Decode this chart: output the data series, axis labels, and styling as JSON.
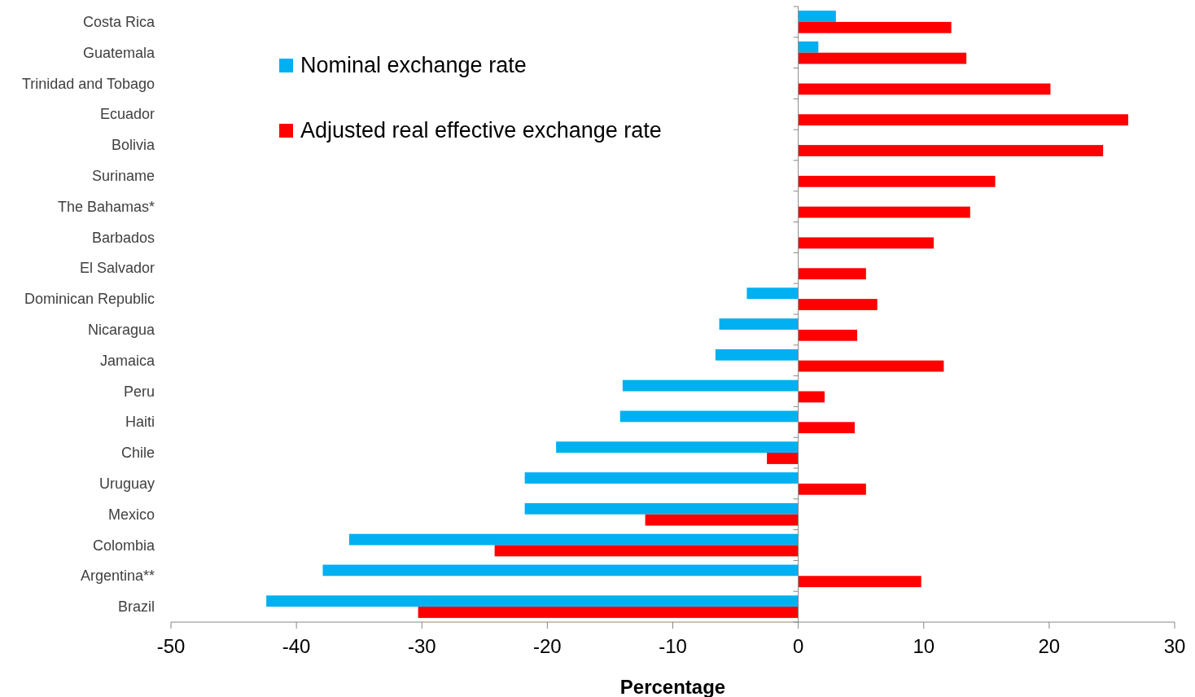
{
  "chart_data": {
    "type": "bar",
    "orientation": "horizontal",
    "xlabel": "Percentage",
    "categories": [
      "Costa Rica",
      "Guatemala",
      "Trinidad and Tobago",
      "Ecuador",
      "Bolivia",
      "Suriname",
      "The Bahamas*",
      "Barbados",
      "El Salvador",
      "Dominican Republic",
      "Nicaragua",
      "Jamaica",
      "Peru",
      "Haiti",
      "Chile",
      "Uruguay",
      "Mexico",
      "Colombia",
      "Argentina**",
      "Brazil"
    ],
    "series": [
      {
        "name": "Nominal exchange rate",
        "color": "#00b0f0",
        "values": [
          3.0,
          1.6,
          null,
          null,
          null,
          null,
          null,
          null,
          null,
          -4.1,
          -6.3,
          -6.6,
          -14.0,
          -14.2,
          -19.3,
          -21.8,
          -21.8,
          -35.8,
          -37.9,
          -42.4
        ]
      },
      {
        "name": "Adjusted real effective exchange rate",
        "color": "#ff0000",
        "values": [
          12.2,
          13.4,
          20.1,
          26.3,
          24.3,
          15.7,
          13.7,
          10.8,
          5.4,
          6.3,
          4.7,
          11.6,
          2.1,
          4.5,
          -2.5,
          5.4,
          -12.2,
          -24.2,
          9.8,
          -30.3
        ]
      }
    ],
    "xlim": [
      -50,
      30
    ],
    "xticks": [
      -50,
      -40,
      -30,
      -20,
      -10,
      0,
      10,
      20,
      30
    ],
    "legend": "top left"
  }
}
